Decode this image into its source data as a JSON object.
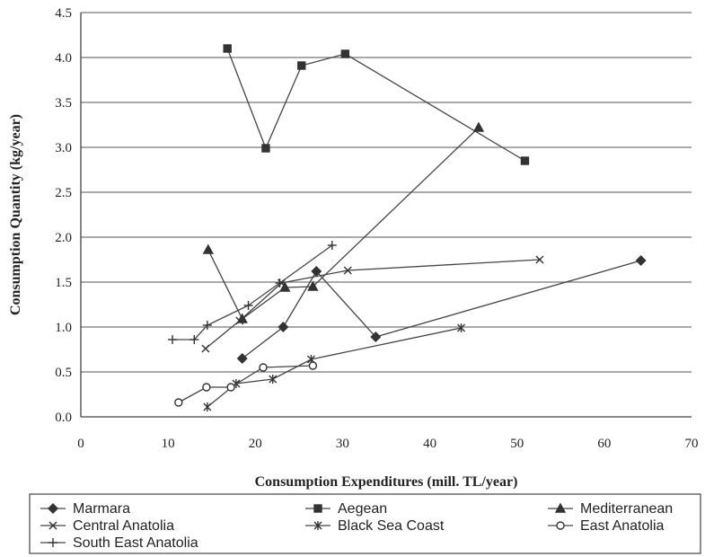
{
  "chart_data": {
    "type": "line",
    "title": "",
    "xlabel": "Consumption Expenditures (mill. TL/year)",
    "ylabel": "Consumption Quantity (kg/year)",
    "xlim": [
      0,
      70
    ],
    "ylim": [
      0,
      4.5
    ],
    "xticks": [
      "0",
      "10",
      "20",
      "30",
      "40",
      "50",
      "60",
      "70"
    ],
    "yticks": [
      "0.0",
      "0.5",
      "1.0",
      "1.5",
      "2.0",
      "2.5",
      "3.0",
      "3.5",
      "4.0",
      "4.5"
    ],
    "grid": "horizontal",
    "legend_position": "bottom",
    "series": [
      {
        "name": "Marmara",
        "marker": "diamond",
        "points": [
          [
            18.5,
            0.65
          ],
          [
            23.2,
            1.0
          ],
          [
            27.0,
            1.62
          ],
          [
            33.8,
            0.89
          ],
          [
            64.2,
            1.74
          ]
        ]
      },
      {
        "name": "Aegean",
        "marker": "square",
        "points": [
          [
            16.8,
            4.1
          ],
          [
            21.2,
            2.99
          ],
          [
            25.3,
            3.91
          ],
          [
            30.3,
            4.04
          ],
          [
            50.9,
            2.85
          ]
        ]
      },
      {
        "name": "Mediterranean",
        "marker": "triangle",
        "points": [
          [
            14.6,
            1.86
          ],
          [
            18.5,
            1.09
          ],
          [
            23.4,
            1.44
          ],
          [
            26.6,
            1.45
          ],
          [
            45.6,
            3.22
          ]
        ]
      },
      {
        "name": "Central Anatolia",
        "marker": "x",
        "points": [
          [
            14.3,
            0.76
          ],
          [
            18.2,
            1.07
          ],
          [
            23.0,
            1.49
          ],
          [
            30.6,
            1.63
          ],
          [
            52.6,
            1.75
          ]
        ]
      },
      {
        "name": "Black Sea Coast",
        "marker": "star",
        "points": [
          [
            14.5,
            0.11
          ],
          [
            17.8,
            0.37
          ],
          [
            22.0,
            0.42
          ],
          [
            26.4,
            0.64
          ],
          [
            43.6,
            0.99
          ]
        ]
      },
      {
        "name": "East Anatolia",
        "marker": "circle",
        "points": [
          [
            11.2,
            0.16
          ],
          [
            14.4,
            0.33
          ],
          [
            17.2,
            0.33
          ],
          [
            20.9,
            0.55
          ],
          [
            26.6,
            0.57
          ]
        ]
      },
      {
        "name": "South East Anatolia",
        "marker": "plus",
        "points": [
          [
            10.5,
            0.86
          ],
          [
            13.0,
            0.86
          ],
          [
            14.5,
            1.02
          ],
          [
            19.2,
            1.24
          ],
          [
            22.8,
            1.49
          ],
          [
            28.8,
            1.91
          ]
        ]
      }
    ]
  }
}
